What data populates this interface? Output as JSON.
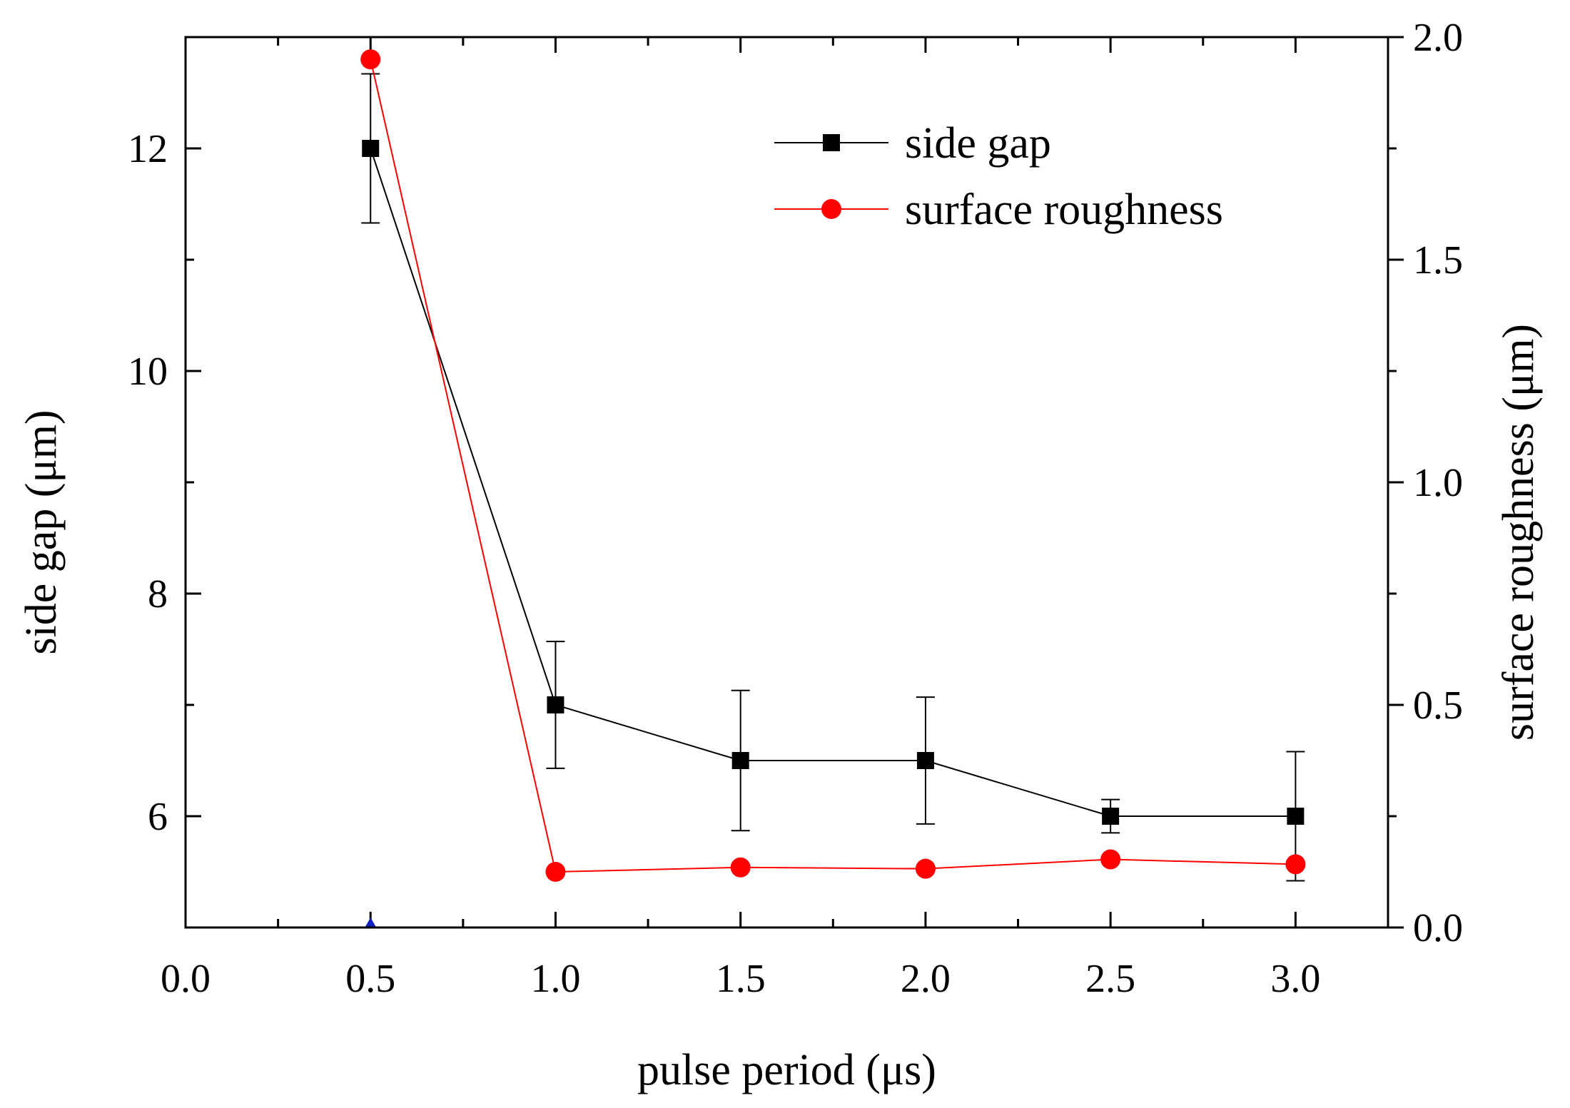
{
  "chart_data": {
    "type": "line",
    "xlabel": "pulse period (μs)",
    "ylabel_left": "side gap (μm)",
    "ylabel_right": "surface roughness (μm)",
    "xlim": [
      0.0,
      3.25
    ],
    "ylim_left": [
      5.0,
      13.0
    ],
    "ylim_right": [
      0.0,
      2.0
    ],
    "x_ticks": [
      0.0,
      0.5,
      1.0,
      1.5,
      2.0,
      2.5,
      3.0
    ],
    "x_tick_labels": [
      "0.0",
      "0.5",
      "1.0",
      "1.5",
      "2.0",
      "2.5",
      "3.0"
    ],
    "y_left_ticks": [
      6,
      8,
      10,
      12
    ],
    "y_left_tick_labels": [
      "6",
      "8",
      "10",
      "12"
    ],
    "y_right_ticks": [
      0.0,
      0.5,
      1.0,
      1.5,
      2.0
    ],
    "y_right_tick_labels": [
      "0.0",
      "0.5",
      "1.0",
      "1.5",
      "2.0"
    ],
    "legend_position": "top-right",
    "series": [
      {
        "name": "side gap",
        "axis": "left",
        "color": "#000000",
        "marker": "square",
        "x": [
          0.5,
          1.0,
          1.5,
          2.0,
          2.5,
          3.0
        ],
        "values": [
          12.0,
          7.0,
          6.5,
          6.5,
          6.0,
          6.0
        ],
        "error_low": [
          11.33,
          6.43,
          5.87,
          5.93,
          5.85,
          5.42
        ],
        "error_high": [
          12.67,
          7.57,
          7.13,
          7.07,
          6.15,
          6.58
        ]
      },
      {
        "name": "surface roughness",
        "axis": "right",
        "color": "#ff0000",
        "marker": "circle",
        "x": [
          0.5,
          1.0,
          1.5,
          2.0,
          2.5,
          3.0
        ],
        "values": [
          1.95,
          0.125,
          0.135,
          0.132,
          0.153,
          0.142
        ]
      }
    ]
  }
}
